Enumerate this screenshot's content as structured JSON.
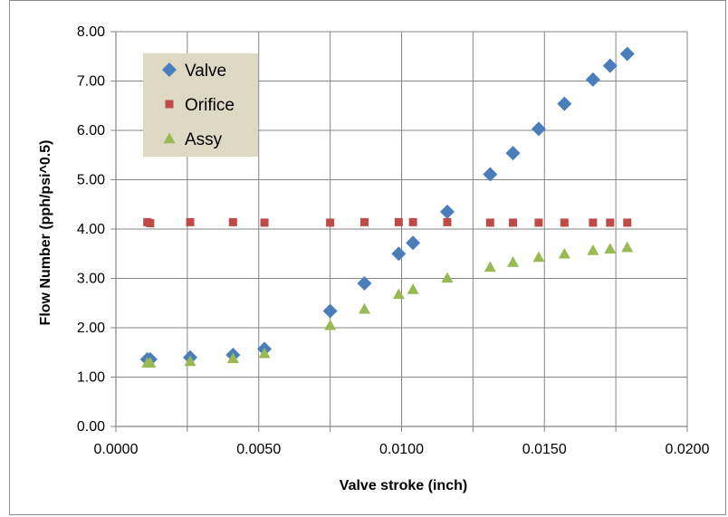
{
  "chart_data": {
    "type": "scatter",
    "xlabel": "Valve stroke (inch)",
    "ylabel": "Flow Number (pph/psi^0.5)",
    "xlim": [
      0,
      0.02
    ],
    "ylim": [
      0,
      8
    ],
    "x_ticks": [
      "0.0000",
      "0.0050",
      "0.0100",
      "0.0150",
      "0.0200"
    ],
    "y_ticks": [
      "0.00",
      "1.00",
      "2.00",
      "3.00",
      "4.00",
      "5.00",
      "6.00",
      "7.00",
      "8.00"
    ],
    "grid": true,
    "legend_position": "top-left",
    "series": [
      {
        "name": "Valve",
        "marker": "diamond",
        "color": "#4a7ebb",
        "points": [
          [
            0.0011,
            1.36
          ],
          [
            0.0012,
            1.36
          ],
          [
            0.0026,
            1.4
          ],
          [
            0.0041,
            1.45
          ],
          [
            0.0052,
            1.57
          ],
          [
            0.0075,
            2.34
          ],
          [
            0.0087,
            2.9
          ],
          [
            0.0099,
            3.5
          ],
          [
            0.0104,
            3.72
          ],
          [
            0.0116,
            4.35
          ],
          [
            0.0131,
            5.11
          ],
          [
            0.0139,
            5.54
          ],
          [
            0.0148,
            6.03
          ],
          [
            0.0157,
            6.54
          ],
          [
            0.0167,
            7.03
          ],
          [
            0.0173,
            7.31
          ],
          [
            0.0179,
            7.55
          ]
        ]
      },
      {
        "name": "Orifice",
        "marker": "square",
        "color": "#be4b48",
        "points": [
          [
            0.0011,
            4.14
          ],
          [
            0.0012,
            4.12
          ],
          [
            0.0026,
            4.14
          ],
          [
            0.0041,
            4.14
          ],
          [
            0.0052,
            4.13
          ],
          [
            0.0075,
            4.13
          ],
          [
            0.0087,
            4.14
          ],
          [
            0.0099,
            4.14
          ],
          [
            0.0104,
            4.14
          ],
          [
            0.0116,
            4.14
          ],
          [
            0.0131,
            4.13
          ],
          [
            0.0139,
            4.13
          ],
          [
            0.0148,
            4.13
          ],
          [
            0.0157,
            4.13
          ],
          [
            0.0167,
            4.13
          ],
          [
            0.0173,
            4.13
          ],
          [
            0.0179,
            4.13
          ]
        ]
      },
      {
        "name": "Assy",
        "marker": "triangle",
        "color": "#98b954",
        "points": [
          [
            0.0011,
            1.29
          ],
          [
            0.0012,
            1.29
          ],
          [
            0.0026,
            1.32
          ],
          [
            0.0041,
            1.38
          ],
          [
            0.0052,
            1.48
          ],
          [
            0.0075,
            2.05
          ],
          [
            0.0087,
            2.38
          ],
          [
            0.0099,
            2.68
          ],
          [
            0.0104,
            2.78
          ],
          [
            0.0116,
            3.01
          ],
          [
            0.0131,
            3.23
          ],
          [
            0.0139,
            3.33
          ],
          [
            0.0148,
            3.43
          ],
          [
            0.0157,
            3.5
          ],
          [
            0.0167,
            3.57
          ],
          [
            0.0173,
            3.6
          ],
          [
            0.0179,
            3.63
          ]
        ]
      }
    ],
    "legend_background": "#ddd9c3"
  }
}
